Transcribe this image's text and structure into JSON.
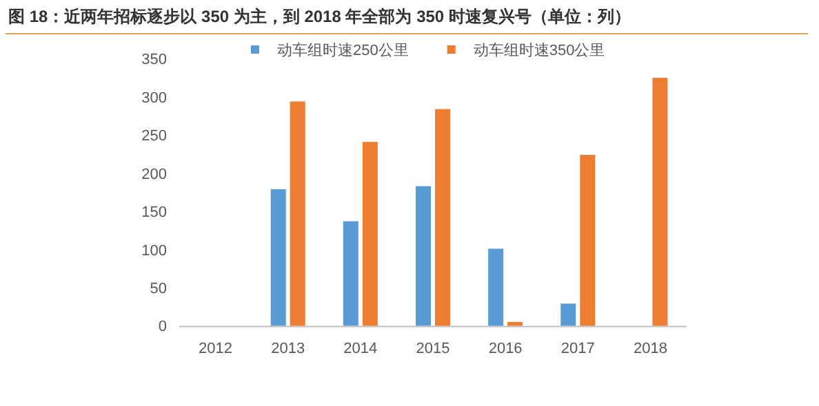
{
  "chart_data": {
    "type": "bar",
    "title": "图 18：近两年招标逐步以 350 为主，到 2018 年全部为 350 时速复兴号（单位：列）",
    "categories": [
      "2012",
      "2013",
      "2014",
      "2015",
      "2016",
      "2017",
      "2018"
    ],
    "series": [
      {
        "name": "动车组时速250公里",
        "color": "#5b9bd5",
        "values": [
          0,
          179,
          137,
          183,
          101,
          29,
          0
        ]
      },
      {
        "name": "动车组时速350公里",
        "color": "#ed7d31",
        "values": [
          0,
          294,
          241,
          284,
          5,
          224,
          325
        ]
      }
    ],
    "ylim": [
      0,
      350
    ],
    "yticks": [
      0,
      50,
      100,
      150,
      200,
      250,
      300,
      350
    ],
    "grid": false,
    "legend": "top"
  }
}
